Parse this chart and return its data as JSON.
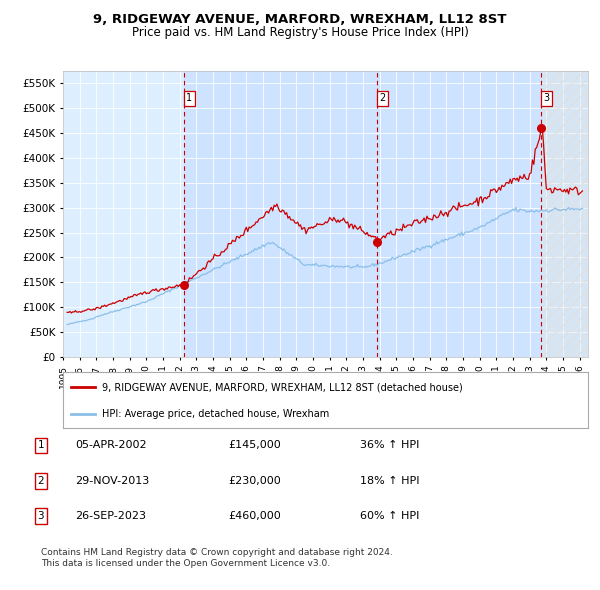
{
  "title": "9, RIDGEWAY AVENUE, MARFORD, WREXHAM, LL12 8ST",
  "subtitle": "Price paid vs. HM Land Registry's House Price Index (HPI)",
  "ylim": [
    0,
    575000
  ],
  "yticks": [
    0,
    50000,
    100000,
    150000,
    200000,
    250000,
    300000,
    350000,
    400000,
    450000,
    500000,
    550000
  ],
  "ytick_labels": [
    "£0",
    "£50K",
    "£100K",
    "£150K",
    "£200K",
    "£250K",
    "£300K",
    "£350K",
    "£400K",
    "£450K",
    "£500K",
    "£550K"
  ],
  "hpi_color": "#8bbfe8",
  "property_color": "#cc0000",
  "background_color": "#ffffff",
  "plot_bg_color": "#ddeeff",
  "purchase_dates": [
    "2002-04-05",
    "2013-11-29",
    "2023-09-26"
  ],
  "purchase_prices": [
    145000,
    230000,
    460000
  ],
  "purchase_labels": [
    "1",
    "2",
    "3"
  ],
  "legend_property": "9, RIDGEWAY AVENUE, MARFORD, WREXHAM, LL12 8ST (detached house)",
  "legend_hpi": "HPI: Average price, detached house, Wrexham",
  "table_rows": [
    [
      "1",
      "05-APR-2002",
      "£145,000",
      "36% ↑ HPI"
    ],
    [
      "2",
      "29-NOV-2013",
      "£230,000",
      "18% ↑ HPI"
    ],
    [
      "3",
      "26-SEP-2023",
      "£460,000",
      "60% ↑ HPI"
    ]
  ],
  "footnote": "Contains HM Land Registry data © Crown copyright and database right 2024.\nThis data is licensed under the Open Government Licence v3.0.",
  "x_start_year": 1995.0,
  "x_end_year": 2026.5
}
